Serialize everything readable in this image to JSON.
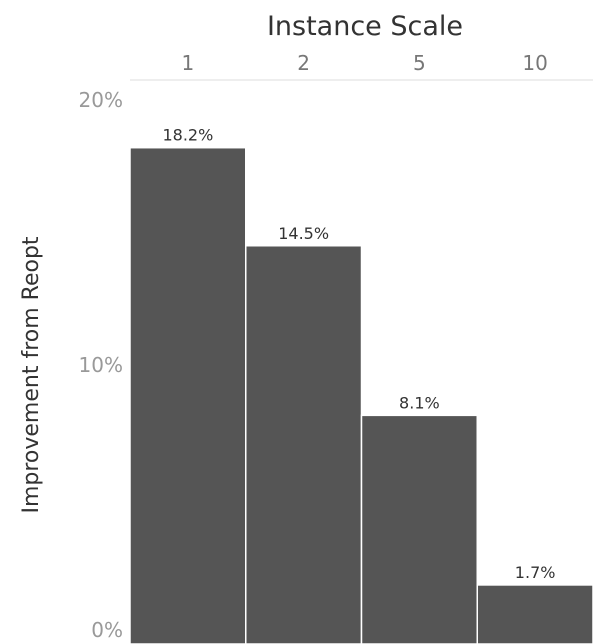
{
  "chart_data": {
    "type": "bar",
    "title": "",
    "xlabel": "Instance Scale",
    "ylabel": "Improvement from Reopt",
    "categories": [
      "1",
      "2",
      "5",
      "10"
    ],
    "values": [
      18.2,
      14.5,
      8.1,
      1.7
    ],
    "value_labels": [
      "18.2%",
      "14.5%",
      "8.1%",
      "1.7%"
    ],
    "yticks": [
      {
        "value": 20,
        "label": "20%"
      },
      {
        "value": 10,
        "label": "10%"
      },
      {
        "value": 0,
        "label": "0%"
      }
    ],
    "ylim": [
      0,
      20
    ],
    "x_axis_position": "top",
    "grid": false,
    "legend": "none",
    "bar_color": "#555555"
  }
}
